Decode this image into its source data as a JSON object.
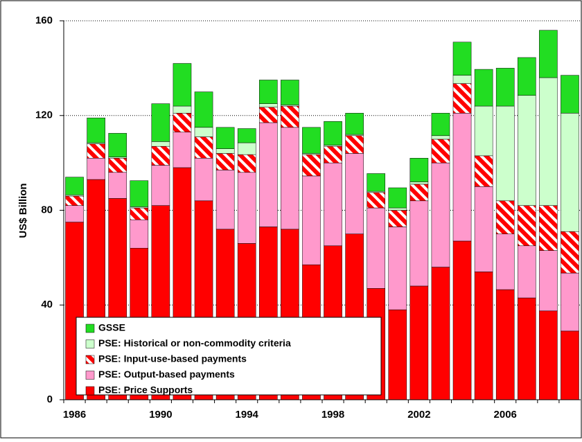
{
  "chart_data": {
    "type": "stacked_bar",
    "ylabel": "US$ Billion",
    "categories": [
      "1986",
      null,
      null,
      null,
      "1990",
      null,
      null,
      null,
      "1994",
      null,
      null,
      null,
      "1998",
      null,
      null,
      null,
      "2002",
      null,
      null,
      null,
      "2006",
      null,
      null,
      null
    ],
    "series": [
      {
        "name": "PSE: Price Supports",
        "color": "#ff0000",
        "values": [
          75,
          93,
          85,
          64,
          82,
          98,
          84,
          72,
          66,
          73,
          72,
          57,
          65,
          70,
          47,
          38,
          48,
          56,
          67,
          54,
          46.5,
          43,
          37.5,
          29
        ]
      },
      {
        "name": "PSE: Output-based payments",
        "color": "#ff99cc",
        "values": [
          7,
          9,
          11,
          12,
          17,
          15,
          18,
          25,
          30,
          44,
          43,
          37.5,
          35,
          34,
          34,
          35,
          36,
          44,
          54,
          36,
          23.5,
          22,
          25.5,
          24.5
        ]
      },
      {
        "name": "PSE: Input-use-based payments",
        "color": "#ff0000",
        "hatch": true,
        "values": [
          4,
          6,
          6,
          5,
          8,
          8,
          9,
          7,
          7.5,
          6.5,
          9,
          9,
          7,
          7.5,
          6.5,
          7,
          7,
          10,
          12.5,
          13,
          14,
          17,
          19,
          17.5
        ]
      },
      {
        "name": "PSE: Historical or non-commodity criteria",
        "color": "#ccffcc",
        "values": [
          0.5,
          0.5,
          0.5,
          0.5,
          2,
          3,
          4,
          2,
          5,
          1.5,
          0.5,
          0.5,
          0.5,
          0.5,
          0.5,
          1,
          1,
          1.5,
          3.5,
          21,
          40,
          46.5,
          54,
          50
        ]
      },
      {
        "name": "GSSE",
        "color": "#22dd22",
        "values": [
          7.5,
          10.5,
          10,
          11,
          16,
          18,
          15,
          9,
          6,
          10,
          10.5,
          11,
          10,
          9,
          7.5,
          8.5,
          10,
          9.5,
          14,
          15.5,
          16,
          16,
          20,
          16
        ]
      }
    ],
    "ylim": [
      0,
      160
    ],
    "yticks": [
      0,
      40,
      80,
      120,
      160
    ],
    "grid": true
  }
}
